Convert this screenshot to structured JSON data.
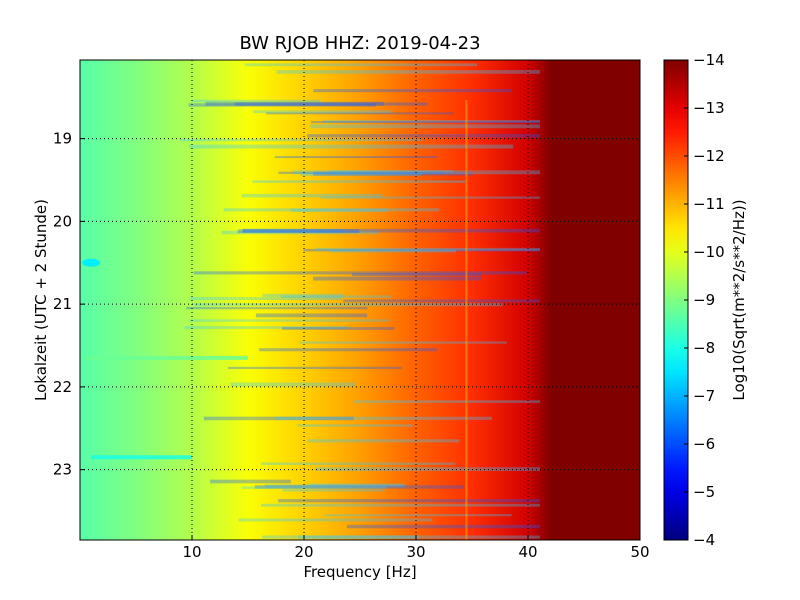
{
  "chart_data": {
    "type": "heatmap",
    "title": "BW RJOB HHZ: 2019-04-23",
    "xlabel": "Frequency [Hz]",
    "ylabel": "Lokalzeit (UTC + 2 Stunde)",
    "xlim": [
      0,
      50
    ],
    "ylim": [
      18.05,
      23.85
    ],
    "y_inverted": true,
    "x_ticks": [
      10,
      20,
      30,
      40,
      50
    ],
    "y_ticks": [
      19,
      20,
      21,
      22,
      23
    ],
    "grid": true,
    "colormap": "jet",
    "colorbar": {
      "label": "Log10(Sqrt(m**2/s**2/Hz))",
      "range": [
        -14,
        -4
      ],
      "ticks": [
        -4,
        -5,
        -6,
        -7,
        -8,
        -9,
        -10,
        -11,
        -12,
        -13,
        -14
      ]
    },
    "profile": {
      "description_points_hz": [
        0,
        5,
        10,
        15,
        20,
        25,
        30,
        35,
        40,
        42,
        50
      ],
      "log10_amplitude": [
        -8.6,
        -9.0,
        -9.5,
        -10.2,
        -10.7,
        -11.2,
        -11.8,
        -12.3,
        -13.2,
        -14.0,
        -14.0
      ]
    },
    "features": [
      {
        "name": "spike",
        "freq_hz": 1.0,
        "time_h": 20.5,
        "log10_amplitude": -7.6
      },
      {
        "name": "band",
        "time_h": 22.85,
        "freq_range_hz": [
          1,
          10
        ],
        "log10_amplitude": -8.0
      },
      {
        "name": "band",
        "time_h": 21.65,
        "freq_range_hz": [
          0.5,
          15
        ],
        "log10_amplitude": -8.8
      },
      {
        "name": "line",
        "freq_hz": 34.5,
        "log10_amplitude": -11.0
      }
    ]
  }
}
